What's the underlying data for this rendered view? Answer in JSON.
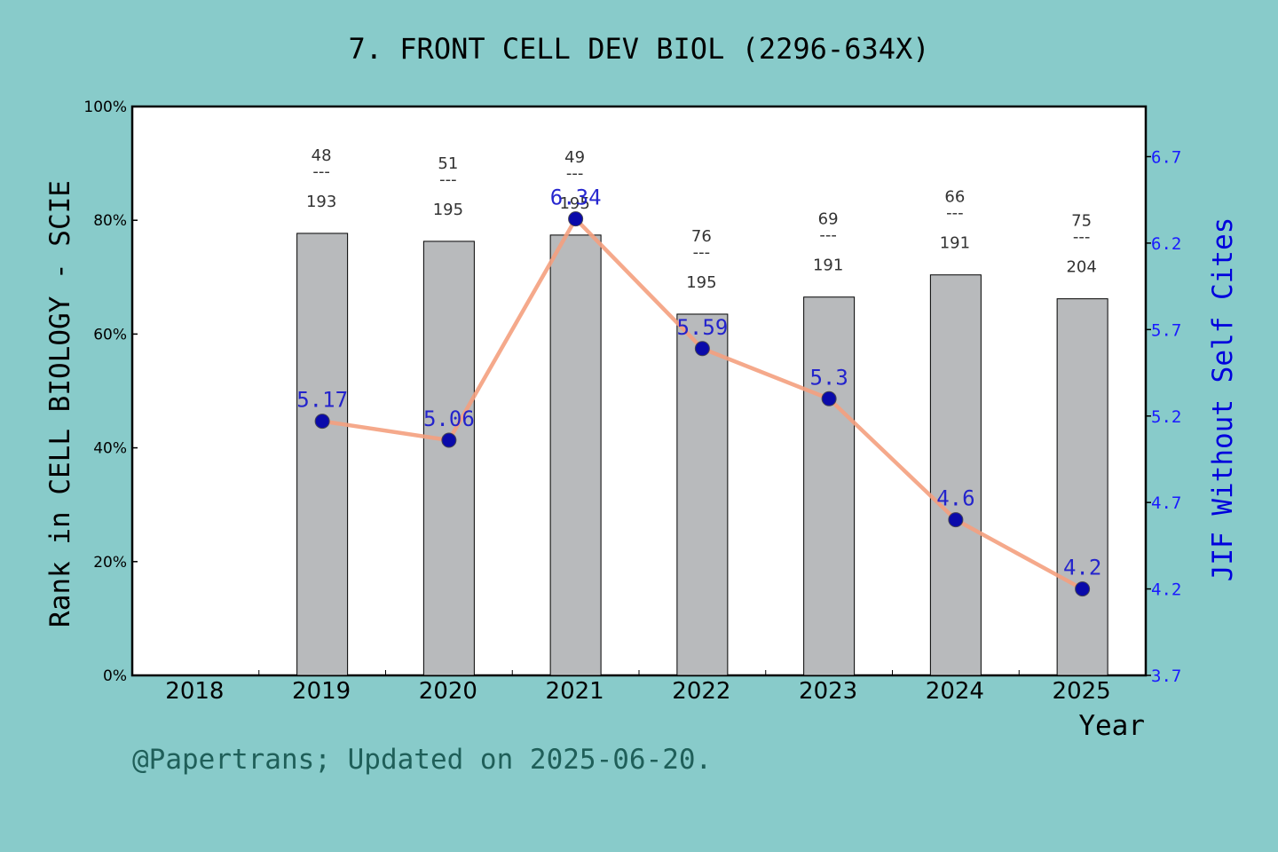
{
  "title": "7. FRONT CELL DEV BIOL (2296-634X)",
  "footer": "@Papertrans; Updated on 2025-06-20.",
  "colors": {
    "background": "#88cbca",
    "plot_area": "#ffffff",
    "bar": "#b8babc",
    "line": "#f4a07e",
    "marker": "#0a0aaa",
    "right_axis": "#0000dd"
  },
  "chart_data": {
    "type": "bar+line",
    "xlabel": "Year",
    "ylabel_left": "Rank in CELL BIOLOGY - SCIE",
    "ylabel_right": "JIF Without Self Cites",
    "categories": [
      "2018",
      "2019",
      "2020",
      "2021",
      "2022",
      "2023",
      "2024",
      "2025"
    ],
    "left_axis": {
      "ylim": [
        0,
        100
      ],
      "ticks": [
        0,
        20,
        40,
        60,
        80,
        100
      ],
      "tick_labels": [
        "0%",
        "20%",
        "40%",
        "60%",
        "80%",
        "100%"
      ]
    },
    "right_axis": {
      "ylim": [
        3.7,
        6.99
      ],
      "ticks": [
        3.7,
        4.2,
        4.7,
        5.2,
        5.7,
        6.2,
        6.7
      ],
      "tick_labels": [
        "3.7",
        "4.2",
        "4.7",
        "5.2",
        "5.7",
        "6.2",
        "6.7"
      ]
    },
    "bars": [
      {
        "year": "2018",
        "value": null,
        "rank": null,
        "total": null
      },
      {
        "year": "2019",
        "value": 77.7,
        "rank": "48",
        "total": "193"
      },
      {
        "year": "2020",
        "value": 76.3,
        "rank": "51",
        "total": "195"
      },
      {
        "year": "2021",
        "value": 77.4,
        "rank": "49",
        "total": "195"
      },
      {
        "year": "2022",
        "value": 63.5,
        "rank": "76",
        "total": "195"
      },
      {
        "year": "2023",
        "value": 66.5,
        "rank": "69",
        "total": "191"
      },
      {
        "year": "2024",
        "value": 70.4,
        "rank": "66",
        "total": "191"
      },
      {
        "year": "2025",
        "value": 66.2,
        "rank": "75",
        "total": "204"
      }
    ],
    "line": [
      {
        "year": "2019",
        "value": 5.17,
        "label": "5.17"
      },
      {
        "year": "2020",
        "value": 5.06,
        "label": "5.06"
      },
      {
        "year": "2021",
        "value": 6.34,
        "label": "6.34"
      },
      {
        "year": "2022",
        "value": 5.59,
        "label": "5.59"
      },
      {
        "year": "2023",
        "value": 5.3,
        "label": "5.3"
      },
      {
        "year": "2024",
        "value": 4.6,
        "label": "4.6"
      },
      {
        "year": "2025",
        "value": 4.2,
        "label": "4.2"
      }
    ],
    "rank_separator": "---",
    "grid": false
  }
}
